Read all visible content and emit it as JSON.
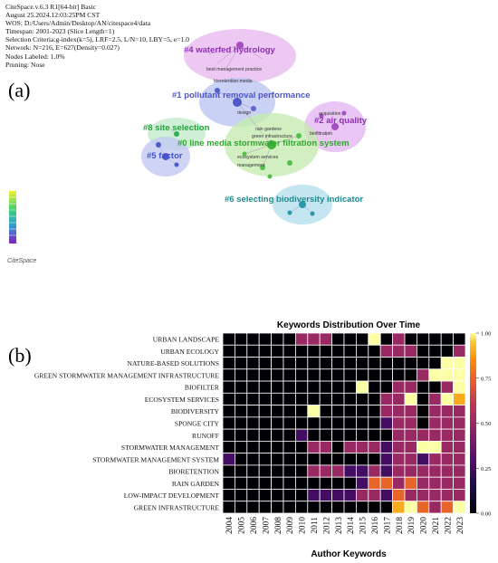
{
  "panel_a": {
    "letter": "(a)",
    "info_lines": [
      "CiteSpace.v.6.3 R1[64-bit] Basic",
      "August 25.2024.12:03:25PM CST",
      "WOS: D:/Users/Admin/Desktop/AN/citespace4/data",
      "Timespan: 2001-2023 (Slice Length=1)",
      "Selection Criteria:g-index(k=5), LRF=2.5, L/N=10, LBY=5, e=1.0",
      "Network: N=216, E=627(Density=0.027)",
      "Nodes Labeled: 1.0%",
      "Pruning: Nose"
    ],
    "clusters": [
      {
        "label": "#4 waterfed hydrology",
        "color": "#8e2fb5"
      },
      {
        "label": "#1 pollutant removal performance",
        "color": "#4e55c9"
      },
      {
        "label": "#8 site selection",
        "color": "#25a33a"
      },
      {
        "label": "#2 air quality",
        "color": "#8e2fb5"
      },
      {
        "label": "#0 line media stormwater filtration system",
        "color": "#2fa82c"
      },
      {
        "label": "#5 factor",
        "color": "#3f52c8"
      },
      {
        "label": "#6 selecting biodiversity indicator",
        "color": "#1f8a8f"
      }
    ],
    "node_labels": [
      "best management practice",
      "bioretention media",
      "design",
      "rain gardens",
      "green infrastructure",
      "ecosystem services",
      "management",
      "biofiltration",
      "acquisition"
    ],
    "logo_text": "CiteSpace",
    "colors": {
      "purple_hull": "#d9a6e6",
      "blue_hull": "#b9c3f0",
      "green_hull": "#bfe8a9",
      "teal_hull": "#a9dbe8"
    }
  },
  "panel_b": {
    "letter": "(b)"
  },
  "chart_data": {
    "type": "heatmap",
    "title": "Keywords Distribution Over Time",
    "xlabel": "Author Keywords",
    "ylabel": "",
    "x": [
      "2004",
      "2005",
      "2006",
      "2007",
      "2008",
      "2009",
      "2010",
      "2011",
      "2012",
      "2013",
      "2014",
      "2015",
      "2016",
      "2017",
      "2018",
      "2019",
      "2020",
      "2021",
      "2022",
      "2023"
    ],
    "y": [
      "URBAN LANDSCAPE",
      "URBAN ECOLOGY",
      "NATURE-BASED SOLUTIONS",
      "GREEN STORMWATER MANAGEMENT INFRASTRUCTURE",
      "BIOFILTER",
      "ECOSYSTEM SERVICES",
      "BIODIVERSITY",
      "SPONGE CITY",
      "RUNOFF",
      "STORMWATER MANAGEMENT",
      "STORMWATER MANAGEMENT SYSTEM",
      "BIORETENTION",
      "RAIN GARDEN",
      "LOW-IMPACT DEVELOPMENT",
      "GREEN INFRASTRUCTURE"
    ],
    "values": [
      [
        0,
        0,
        0,
        0,
        0,
        0,
        0.5,
        0.5,
        0.5,
        0,
        0,
        0,
        1,
        0,
        0.5,
        0,
        0,
        0,
        0,
        0
      ],
      [
        0,
        0,
        0,
        0,
        0,
        0,
        0,
        0,
        0,
        0,
        0,
        0,
        0,
        0.5,
        0.5,
        0.5,
        0,
        0,
        0,
        0.5
      ],
      [
        0,
        0,
        0,
        0,
        0,
        0,
        0,
        0,
        0,
        0,
        0,
        0,
        0,
        0,
        0,
        0,
        0,
        0,
        1,
        1
      ],
      [
        0,
        0,
        0,
        0,
        0,
        0,
        0,
        0,
        0,
        0,
        0,
        0,
        0,
        0,
        0,
        0,
        0.5,
        1,
        1,
        1
      ],
      [
        0,
        0,
        0,
        0,
        0,
        0,
        0,
        0,
        0,
        0,
        0,
        1,
        0,
        0,
        0.5,
        0.5,
        0,
        0,
        0.5,
        1
      ],
      [
        0,
        0,
        0,
        0,
        0,
        0,
        0,
        0,
        0,
        0,
        0,
        0,
        0,
        0.5,
        0.5,
        1,
        0,
        0.5,
        1,
        0.9
      ],
      [
        0,
        0,
        0,
        0,
        0,
        0,
        0,
        1,
        0,
        0,
        0,
        0,
        0,
        0.5,
        0.5,
        0.5,
        0,
        0.5,
        0.5,
        0.5
      ],
      [
        0,
        0,
        0,
        0,
        0,
        0,
        0,
        0,
        0,
        0,
        0,
        0,
        0,
        0.25,
        0.5,
        0.5,
        0,
        0.5,
        0.5,
        0.5
      ],
      [
        0,
        0,
        0,
        0,
        0,
        0,
        0.25,
        0,
        0,
        0,
        0,
        0,
        0,
        0,
        0.5,
        0.5,
        0.5,
        0.5,
        0.5,
        0.5
      ],
      [
        0,
        0,
        0,
        0,
        0,
        0,
        0,
        0.5,
        0.5,
        0,
        0.5,
        0.5,
        0.5,
        0.25,
        0.5,
        0.5,
        1,
        1,
        0.5,
        0.5
      ],
      [
        0.25,
        0,
        0,
        0,
        0,
        0,
        0,
        0,
        0,
        0,
        0,
        0,
        0,
        0.25,
        0.5,
        0.5,
        0.25,
        0.5,
        0.5,
        0.5
      ],
      [
        0,
        0,
        0,
        0,
        0,
        0,
        0,
        0.5,
        0.5,
        0.5,
        0.25,
        0.25,
        0.5,
        0.25,
        0.5,
        0.5,
        0.5,
        0.5,
        0.5,
        0.5
      ],
      [
        0,
        0,
        0,
        0,
        0,
        0,
        0,
        0,
        0,
        0,
        0,
        0.25,
        0.75,
        0.75,
        0.5,
        0.75,
        0.5,
        0.5,
        0.5,
        0.5
      ],
      [
        0,
        0,
        0,
        0,
        0,
        0,
        0,
        0.25,
        0.25,
        0.25,
        0.25,
        0.5,
        0.5,
        0.25,
        0.75,
        0.5,
        0.5,
        0.5,
        0.5,
        0.5
      ],
      [
        0,
        0,
        0,
        0,
        0,
        0,
        0,
        0,
        0,
        0,
        0,
        0,
        0,
        0,
        0.9,
        1,
        0.75,
        0.5,
        0.75,
        1
      ]
    ],
    "colorbar": {
      "min": 0,
      "max": 1,
      "ticks": [
        "0.00",
        "0.25",
        "0.50",
        "0.75",
        "1.00"
      ],
      "colormap": "inferno"
    },
    "grid": true
  }
}
